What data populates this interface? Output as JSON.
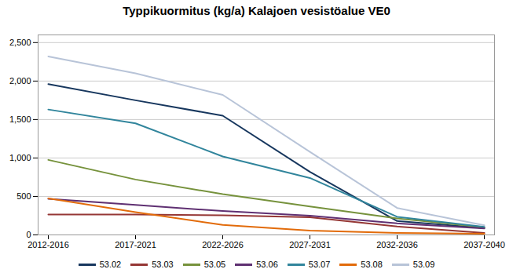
{
  "chart_data": {
    "type": "line",
    "title": "Typpikuormitus (kg/a) Kalajoen vesistöalue VE0",
    "categories": [
      "2012-2016",
      "2017-2021",
      "2022-2026",
      "2027-2031",
      "2032-2036",
      "2037-2040"
    ],
    "series": [
      {
        "name": "53.02",
        "color": "#17375E",
        "values": [
          1960,
          1750,
          1550,
          820,
          180,
          90
        ]
      },
      {
        "name": "53.03",
        "color": "#953735",
        "values": [
          265,
          265,
          255,
          230,
          110,
          25
        ]
      },
      {
        "name": "53.05",
        "color": "#76923C",
        "values": [
          975,
          720,
          530,
          370,
          215,
          100
        ]
      },
      {
        "name": "53.06",
        "color": "#5F3072",
        "values": [
          470,
          390,
          310,
          250,
          150,
          85
        ]
      },
      {
        "name": "53.07",
        "color": "#31859C",
        "values": [
          1630,
          1450,
          1020,
          740,
          235,
          105
        ]
      },
      {
        "name": "53.08",
        "color": "#E26B0A",
        "values": [
          475,
          295,
          130,
          55,
          25,
          15
        ]
      },
      {
        "name": "53.09",
        "color": "#B8C4D8",
        "values": [
          2320,
          2100,
          1820,
          1080,
          350,
          125
        ]
      }
    ],
    "ylim": [
      0,
      2600
    ],
    "yticks": [
      0,
      500,
      1000,
      1500,
      2000,
      2500
    ],
    "grid": true,
    "legend": "bottom"
  }
}
